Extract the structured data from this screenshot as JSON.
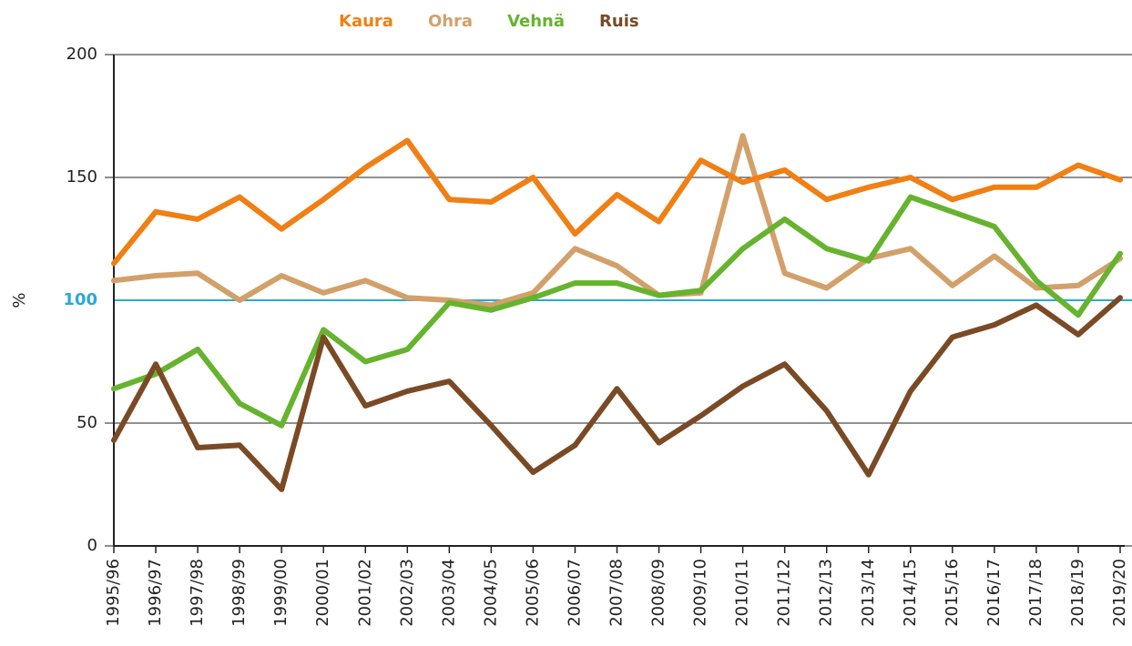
{
  "chart_data": {
    "type": "line",
    "y_axis_label": "%",
    "categories": [
      "1995/96",
      "1996/97",
      "1997/98",
      "1998/99",
      "1999/00",
      "2000/01",
      "2001/02",
      "2002/03",
      "2003/04",
      "2004/05",
      "2005/06",
      "2006/07",
      "2007/08",
      "2008/09",
      "2009/10",
      "2010/11",
      "2011/12",
      "2012/13",
      "2013/14",
      "2014/15",
      "2015/16",
      "2016/17",
      "2017/18",
      "2018/19",
      "2019/20"
    ],
    "series": [
      {
        "name": "Kaura",
        "color": "#f07f14",
        "values": [
          115,
          136,
          133,
          142,
          129,
          141,
          154,
          165,
          141,
          140,
          150,
          127,
          143,
          132,
          157,
          148,
          153,
          141,
          146,
          150,
          141,
          146,
          146,
          155,
          149
        ]
      },
      {
        "name": "Ohra",
        "color": "#d2a06a",
        "values": [
          108,
          110,
          111,
          100,
          110,
          103,
          108,
          101,
          100,
          98,
          103,
          121,
          114,
          102,
          103,
          167,
          111,
          105,
          117,
          121,
          106,
          118,
          105,
          106,
          117
        ]
      },
      {
        "name": "Vehnä",
        "color": "#66b32e",
        "values": [
          64,
          70,
          80,
          58,
          49,
          88,
          75,
          80,
          99,
          96,
          101,
          107,
          107,
          102,
          104,
          121,
          133,
          121,
          116,
          142,
          136,
          130,
          108,
          94,
          119
        ]
      },
      {
        "name": "Ruis",
        "color": "#7a4a25",
        "values": [
          43,
          74,
          40,
          41,
          23,
          85,
          57,
          63,
          67,
          49,
          30,
          41,
          64,
          42,
          53,
          65,
          74,
          55,
          29,
          63,
          85,
          90,
          98,
          86,
          101
        ]
      }
    ],
    "ylim": [
      0,
      200
    ],
    "yticks": [
      0,
      50,
      100,
      150,
      200
    ],
    "grid": true,
    "reference_line": {
      "value": 100,
      "color": "#29a9d6"
    }
  }
}
